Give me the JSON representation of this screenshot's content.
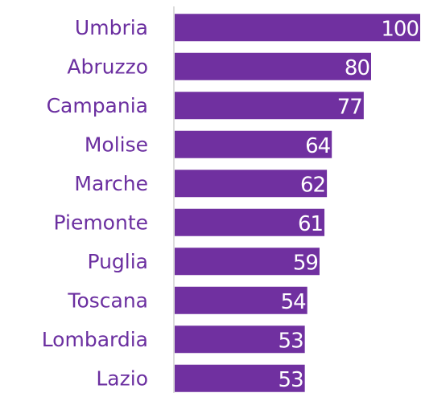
{
  "chart_data": {
    "type": "barh",
    "categories": [
      "Umbria",
      "Abruzzo",
      "Campania",
      "Molise",
      "Marche",
      "Piemonte",
      "Puglia",
      "Toscana",
      "Lombardia",
      "Lazio"
    ],
    "values": [
      100,
      80,
      77,
      64,
      62,
      61,
      59,
      54,
      53,
      53
    ],
    "color": "#7030a0",
    "label_color": "#6b2fa0",
    "value_label_color": "#ffffff",
    "xlim": [
      0,
      100
    ]
  }
}
